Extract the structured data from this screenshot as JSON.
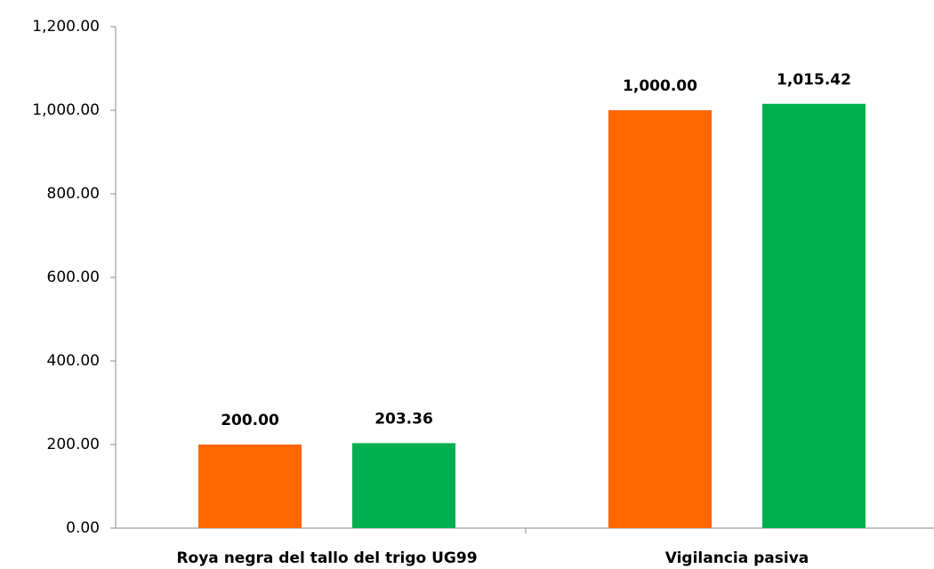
{
  "chart_data": {
    "type": "bar",
    "categories": [
      "Roya negra del tallo del trigo UG99",
      "Vigilancia pasiva"
    ],
    "series": [
      {
        "color": "#ff6600",
        "values": [
          200,
          1000
        ],
        "value_labels": [
          "200.00",
          "1,000.00"
        ]
      },
      {
        "color": "#00b050",
        "values": [
          203.36,
          1015.42
        ],
        "value_labels": [
          "203.36",
          "1,015.42"
        ]
      }
    ],
    "ylim": [
      0,
      1200
    ],
    "yticks": [
      {
        "value": 0,
        "label": "0.00"
      },
      {
        "value": 200,
        "label": "200.00"
      },
      {
        "value": 400,
        "label": "400.00"
      },
      {
        "value": 600,
        "label": "600.00"
      },
      {
        "value": 800,
        "label": "800.00"
      },
      {
        "value": 1000,
        "label": "1,000.00"
      },
      {
        "value": 1200,
        "label": "1,200.00"
      }
    ],
    "grid": false
  }
}
